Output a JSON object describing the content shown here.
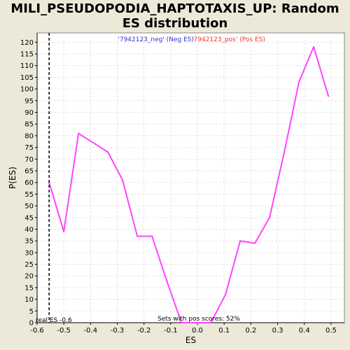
{
  "title_line1": "MILI_PSEUDOPODIA_HAPTOTAXIS_UP: Random",
  "title_line2": "ES distribution",
  "chart_data": {
    "type": "line",
    "xlabel": "ES",
    "ylabel": "P(ES)",
    "xlim": [
      -0.6,
      0.55
    ],
    "ylim": [
      0,
      124
    ],
    "x_ticks": [
      -0.6,
      -0.5,
      -0.4,
      -0.3,
      -0.2,
      -0.1,
      0.0,
      0.1,
      0.2,
      0.3,
      0.4,
      0.5
    ],
    "x_tick_labels": [
      "-0.6",
      "-0.5",
      "-0.4",
      "-0.3",
      "-0.2",
      "-0.1",
      "0.0",
      "0.1",
      "0.2",
      "0.3",
      "0.4",
      "0.5"
    ],
    "y_ticks": [
      0,
      5,
      10,
      15,
      20,
      25,
      30,
      35,
      40,
      45,
      50,
      55,
      60,
      65,
      70,
      75,
      80,
      85,
      90,
      95,
      100,
      105,
      110,
      115,
      120
    ],
    "grid": true,
    "series": [
      {
        "color": "#ff44ff",
        "x": [
          -0.555,
          -0.5,
          -0.445,
          -0.335,
          -0.28,
          -0.225,
          -0.17,
          -0.115,
          -0.06,
          -0.005,
          0.05,
          0.105,
          0.16,
          0.215,
          0.27,
          0.325,
          0.38,
          0.435,
          0.49
        ],
        "y": [
          60,
          39,
          81,
          73,
          61,
          37,
          37,
          18,
          0,
          0,
          0,
          12,
          35,
          34,
          45,
          73,
          103,
          118,
          97
        ]
      }
    ],
    "real_es_marker": {
      "x": -0.555,
      "label": "real ES -0.6"
    },
    "legend": {
      "neg_label": "'7942123_neg' (Neg ES)",
      "neg_color": "#3333cc",
      "pos_label": "'7942123_pos' (Pos ES)",
      "pos_color": "#ee3333"
    },
    "annotation": "Sets with pos scores: 52%"
  }
}
